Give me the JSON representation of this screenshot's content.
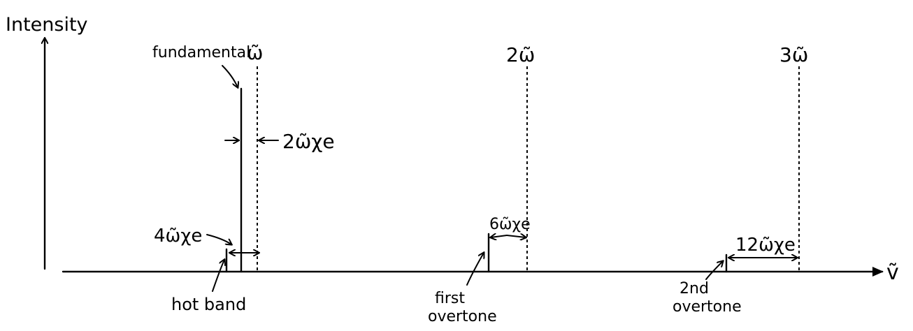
{
  "axes": {
    "y_label": "Intensity",
    "x_label": "ṽ"
  },
  "markers": {
    "omega": "ω̃",
    "two_omega": "2ω̃",
    "three_omega": "3ω̃"
  },
  "labels": {
    "fundamental": "fundamental",
    "hot_band": "hot band",
    "first_overtone_line1": "first",
    "first_overtone_line2": "overtone",
    "second_overtone_line1": "2nd",
    "second_overtone_line2": "overtone"
  },
  "spacings": {
    "fundamental_shift": "2ω̃χe",
    "hot_band_shift": "4ω̃χe",
    "first_overtone_shift": "6ω̃χe",
    "second_overtone_shift": "12ω̃χe"
  }
}
